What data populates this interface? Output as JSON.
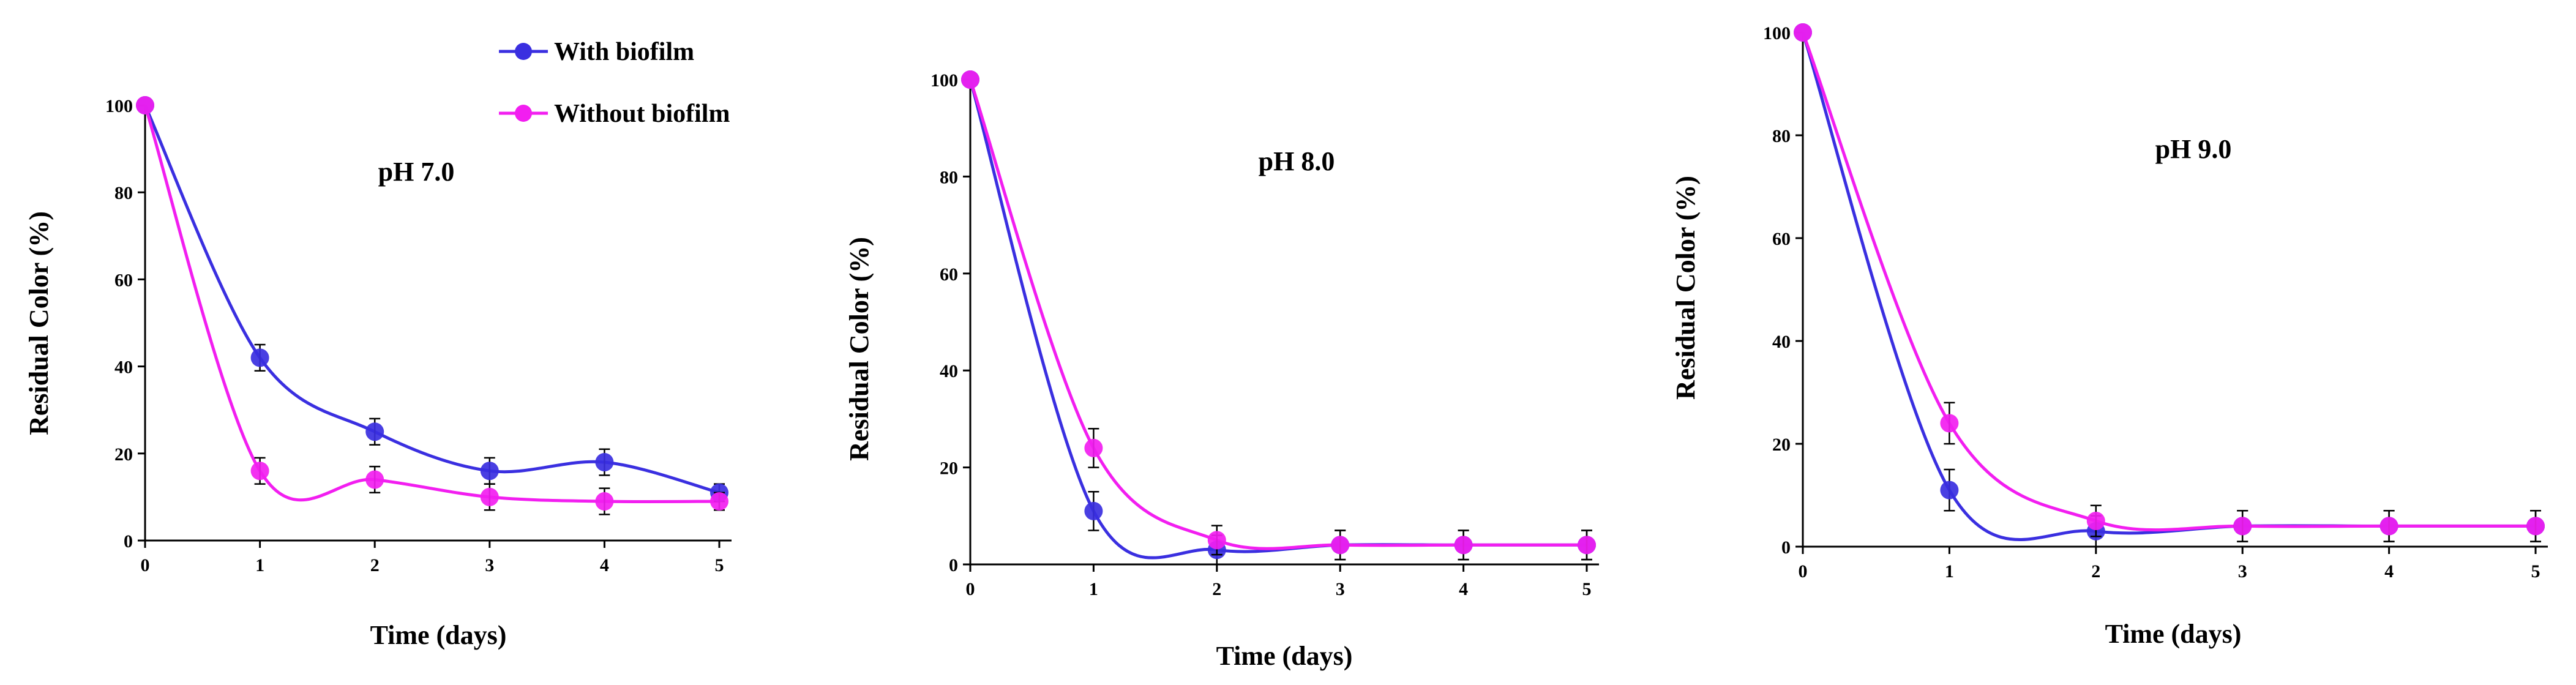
{
  "colors": {
    "with_biofilm": "#3a2fe0",
    "without_biofilm": "#f21ef0",
    "axis": "#000000"
  },
  "legend": {
    "placement": "top-right of first panel",
    "entries": [
      "With biofilm",
      "Without biofilm"
    ]
  },
  "chart_data": [
    {
      "type": "line",
      "title": "pH 7.0",
      "xlabel": "Time (days)",
      "ylabel": "Residual Color  (%)",
      "x": [
        0,
        1,
        2,
        3,
        4,
        5
      ],
      "x_ticks": [
        "0",
        "1",
        "2",
        "3",
        "4",
        "5"
      ],
      "y_ticks": [
        "0",
        "20",
        "40",
        "60",
        "80",
        "100"
      ],
      "xlim": [
        0,
        5
      ],
      "ylim": [
        0,
        100
      ],
      "series": [
        {
          "name": "With biofilm",
          "values": [
            100,
            42,
            25,
            16,
            18,
            11
          ],
          "errors": [
            0,
            3,
            3,
            3,
            3,
            2
          ]
        },
        {
          "name": "Without biofilm",
          "values": [
            100,
            16,
            14,
            10,
            9,
            9
          ],
          "errors": [
            0,
            3,
            3,
            3,
            3,
            2
          ]
        }
      ]
    },
    {
      "type": "line",
      "title": "pH 8.0",
      "xlabel": "Time (days)",
      "ylabel": "Residual  Color  (%)",
      "x": [
        0,
        1,
        2,
        3,
        4,
        5
      ],
      "x_ticks": [
        "0",
        "1",
        "2",
        "3",
        "4",
        "5"
      ],
      "y_ticks": [
        "0",
        "20",
        "40",
        "60",
        "80",
        "100"
      ],
      "xlim": [
        0,
        5
      ],
      "ylim": [
        0,
        100
      ],
      "series": [
        {
          "name": "With biofilm",
          "values": [
            100,
            11,
            3,
            4,
            4,
            4
          ],
          "errors": [
            0,
            4,
            3,
            3,
            3,
            3
          ]
        },
        {
          "name": "Without biofilm",
          "values": [
            100,
            24,
            5,
            4,
            4,
            4
          ],
          "errors": [
            0,
            4,
            3,
            3,
            3,
            3
          ]
        }
      ]
    },
    {
      "type": "line",
      "title": "pH 9.0",
      "xlabel": "Time (days)",
      "ylabel": "Residual  Color  (%)",
      "x": [
        0,
        1,
        2,
        3,
        4,
        5
      ],
      "x_ticks": [
        "0",
        "1",
        "2",
        "3",
        "4",
        "5"
      ],
      "y_ticks": [
        "0",
        "20",
        "40",
        "60",
        "80",
        "100"
      ],
      "xlim": [
        0,
        5
      ],
      "ylim": [
        0,
        100
      ],
      "series": [
        {
          "name": "With biofilm",
          "values": [
            100,
            11,
            3,
            4,
            4,
            4
          ],
          "errors": [
            0,
            4,
            3,
            3,
            3,
            3
          ]
        },
        {
          "name": "Without biofilm",
          "values": [
            100,
            24,
            5,
            4,
            4,
            4
          ],
          "errors": [
            0,
            4,
            3,
            3,
            3,
            3
          ]
        }
      ]
    }
  ]
}
